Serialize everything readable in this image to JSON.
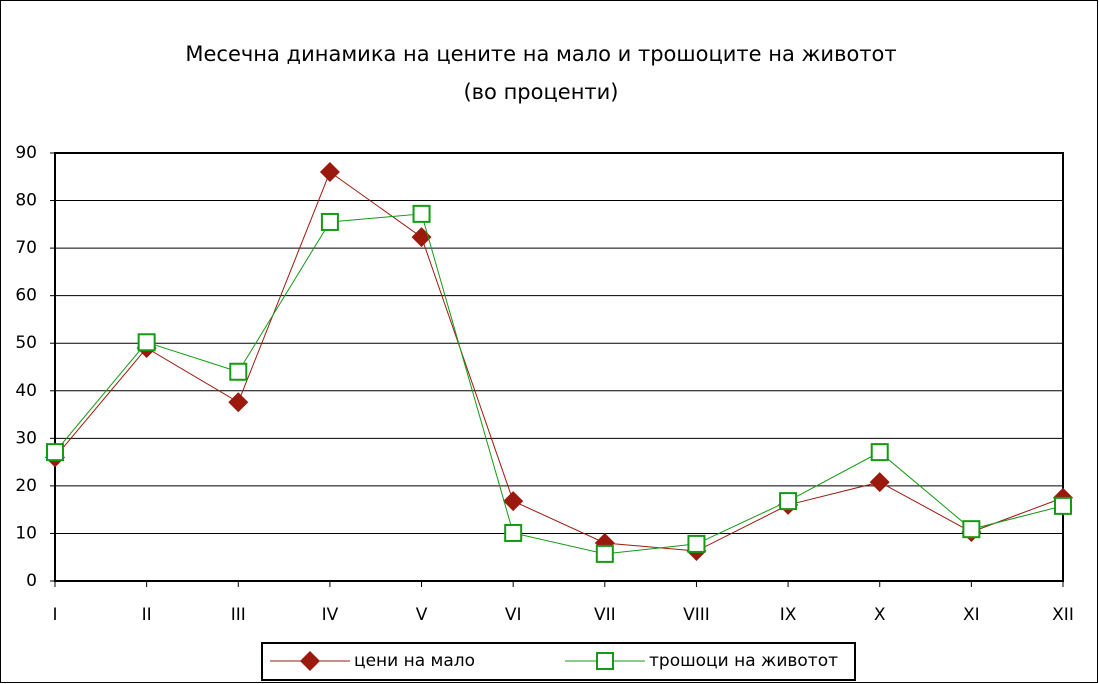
{
  "chart_data": {
    "type": "line",
    "title": "Месечна динамика на цените на мало и трошоците на животот",
    "subtitle": "(во проценти)",
    "categories": [
      "I",
      "II",
      "III",
      "IV",
      "V",
      "VI",
      "VII",
      "VIII",
      "IX",
      "X",
      "XI",
      "XII"
    ],
    "series": [
      {
        "name": "цени на мало",
        "color": "#9b1a0e",
        "marker": "diamond",
        "values": [
          26,
          49,
          37.6,
          86,
          72.3,
          16.8,
          8,
          6.3,
          16,
          20.8,
          10.3,
          17.5
        ]
      },
      {
        "name": "трошоци на животот",
        "color": "#149a14",
        "marker": "square",
        "values": [
          27.1,
          50.2,
          44,
          75.5,
          77.2,
          10.1,
          5.7,
          7.8,
          16.8,
          27.1,
          10.9,
          15.8
        ]
      }
    ],
    "ylim": [
      0,
      90
    ],
    "yticks": [
      0,
      10,
      20,
      30,
      40,
      50,
      60,
      70,
      80,
      90
    ],
    "grid": true,
    "legend": "bottom"
  }
}
